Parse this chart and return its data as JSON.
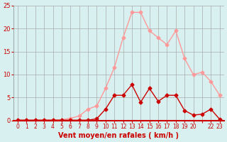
{
  "x": [
    0,
    1,
    2,
    3,
    4,
    5,
    6,
    7,
    8,
    9,
    10,
    11,
    12,
    13,
    14,
    15,
    16,
    17,
    18,
    19,
    20,
    21,
    22,
    23
  ],
  "y_rafales": [
    0.1,
    0.1,
    0.1,
    0.1,
    0.1,
    0.2,
    0.5,
    1.0,
    2.5,
    3.2,
    7.0,
    11.5,
    18.0,
    23.5,
    23.5,
    19.5,
    18.0,
    16.5,
    19.5,
    13.5,
    10.0,
    10.5,
    8.5,
    5.5
  ],
  "y_moyen": [
    0.1,
    0.1,
    0.1,
    0.1,
    0.1,
    0.1,
    0.1,
    0.1,
    0.1,
    0.4,
    2.5,
    5.5,
    5.5,
    7.8,
    4.0,
    7.0,
    4.2,
    5.5,
    5.5,
    2.2,
    1.2,
    1.4,
    2.5,
    0.3
  ],
  "bg_color": "#d8f0f0",
  "line_color_rafales": "#ff9999",
  "line_color_moyen": "#cc0000",
  "grid_color": "#aaaaaa",
  "xlabel": "Vent moyen/en rafales ( km/h )",
  "ylim": [
    0,
    25
  ],
  "yticks": [
    0,
    5,
    10,
    15,
    20,
    25
  ],
  "xtick_labels": [
    "0",
    "1",
    "2",
    "3",
    "4",
    "5",
    "6",
    "7",
    "8",
    "9",
    "10",
    "11",
    "12",
    "13",
    "14",
    "15",
    "16",
    "17",
    "18",
    "19",
    "20",
    "",
    "22",
    "23"
  ],
  "xlabel_color": "#cc0000",
  "tick_color": "#cc0000"
}
